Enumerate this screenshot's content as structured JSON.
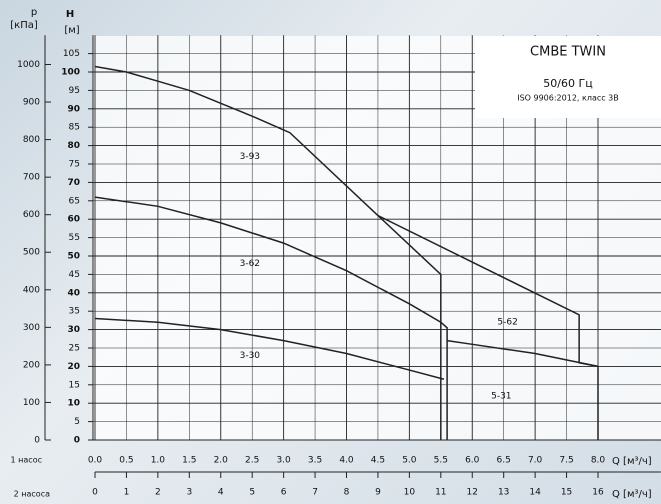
{
  "chart_data": {
    "type": "line",
    "title": "CMBE TWIN",
    "subtitle": "50/60 Гц",
    "note": "ISO 9906:2012, класс 3B",
    "y_label": "H",
    "y_unit": "[м]",
    "y2_label": "p",
    "y2_unit": "[кПа]",
    "x_label": "Q [м³/ч]",
    "x_row_label": "1 насос",
    "x2_label": "Q [м³/ч]",
    "x2_row_label": "2 насоса",
    "xlim": [
      0,
      9
    ],
    "xticks": [
      {
        "value": 0,
        "label": "0.0"
      },
      {
        "value": 0.5,
        "label": "0.5"
      },
      {
        "value": 1,
        "label": "1.0"
      },
      {
        "value": 1.5,
        "label": "1.5"
      },
      {
        "value": 2,
        "label": "2.0"
      },
      {
        "value": 2.5,
        "label": "2.5"
      },
      {
        "value": 3,
        "label": "3.0"
      },
      {
        "value": 3.5,
        "label": "3.5"
      },
      {
        "value": 4,
        "label": "4.0"
      },
      {
        "value": 4.5,
        "label": "4.5"
      },
      {
        "value": 5,
        "label": "5.0"
      },
      {
        "value": 5.5,
        "label": "5.5"
      },
      {
        "value": 6,
        "label": "6.0"
      },
      {
        "value": 6.5,
        "label": "6.5"
      },
      {
        "value": 7,
        "label": "7.0"
      },
      {
        "value": 7.5,
        "label": "7.5"
      },
      {
        "value": 8,
        "label": "8.0"
      }
    ],
    "x2lim": [
      0,
      18
    ],
    "x2ticks": [
      0,
      1,
      2,
      3,
      4,
      5,
      6,
      7,
      8,
      9,
      10,
      11,
      12,
      13,
      14,
      15,
      16
    ],
    "ylim": [
      0,
      110
    ],
    "yticks": [
      0,
      5,
      10,
      15,
      20,
      25,
      30,
      35,
      40,
      45,
      50,
      55,
      60,
      65,
      70,
      75,
      80,
      85,
      90,
      95,
      100,
      105
    ],
    "y2lim": [
      0,
      1078
    ],
    "y2ticks": [
      0,
      100,
      200,
      300,
      400,
      500,
      600,
      700,
      800,
      900,
      1000
    ],
    "grid": true,
    "series": [
      {
        "name": "3-93",
        "color": "#222",
        "x": [
          0,
          0.5,
          1,
          1.5,
          2,
          2.5,
          3.1,
          4.5,
          5.5,
          5.5
        ],
        "values": [
          101.5,
          100,
          97.5,
          95,
          91.5,
          88,
          83.5,
          61,
          45,
          0
        ]
      },
      {
        "name": "3-62",
        "color": "#222",
        "x": [
          0,
          1,
          2,
          3,
          4,
          5,
          5.5,
          5.6,
          5.6
        ],
        "values": [
          66,
          63.5,
          59,
          53.5,
          46,
          37,
          32,
          30.5,
          0
        ]
      },
      {
        "name": "3-30",
        "color": "#222",
        "x": [
          0,
          1,
          2,
          3,
          4,
          5,
          5.55
        ],
        "values": [
          33,
          32,
          30,
          27,
          23.5,
          19,
          16.5
        ]
      },
      {
        "name": "5-62",
        "color": "#222",
        "x": [
          4.5,
          7.7,
          7.7,
          8.0
        ],
        "values": [
          61,
          34,
          21,
          20
        ]
      },
      {
        "name": "5-31",
        "color": "#222",
        "x": [
          5.6,
          6,
          7,
          8,
          8
        ],
        "values": [
          27,
          26,
          23.5,
          20,
          0
        ]
      }
    ]
  }
}
